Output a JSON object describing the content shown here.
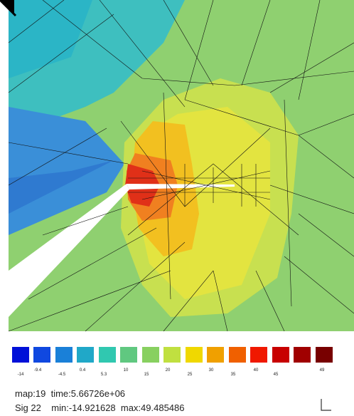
{
  "colorbar": {
    "labels": [
      "-14",
      "-9.4",
      "-4.5",
      "0.4",
      "5.3",
      "10",
      "15",
      "20",
      "25",
      "30",
      "35",
      "40",
      "45",
      "49"
    ]
  },
  "info": {
    "line1": "map:19  time:5.66726e+06",
    "line2": "Sig 22    min:-14.921628  max:49.485486"
  }
}
